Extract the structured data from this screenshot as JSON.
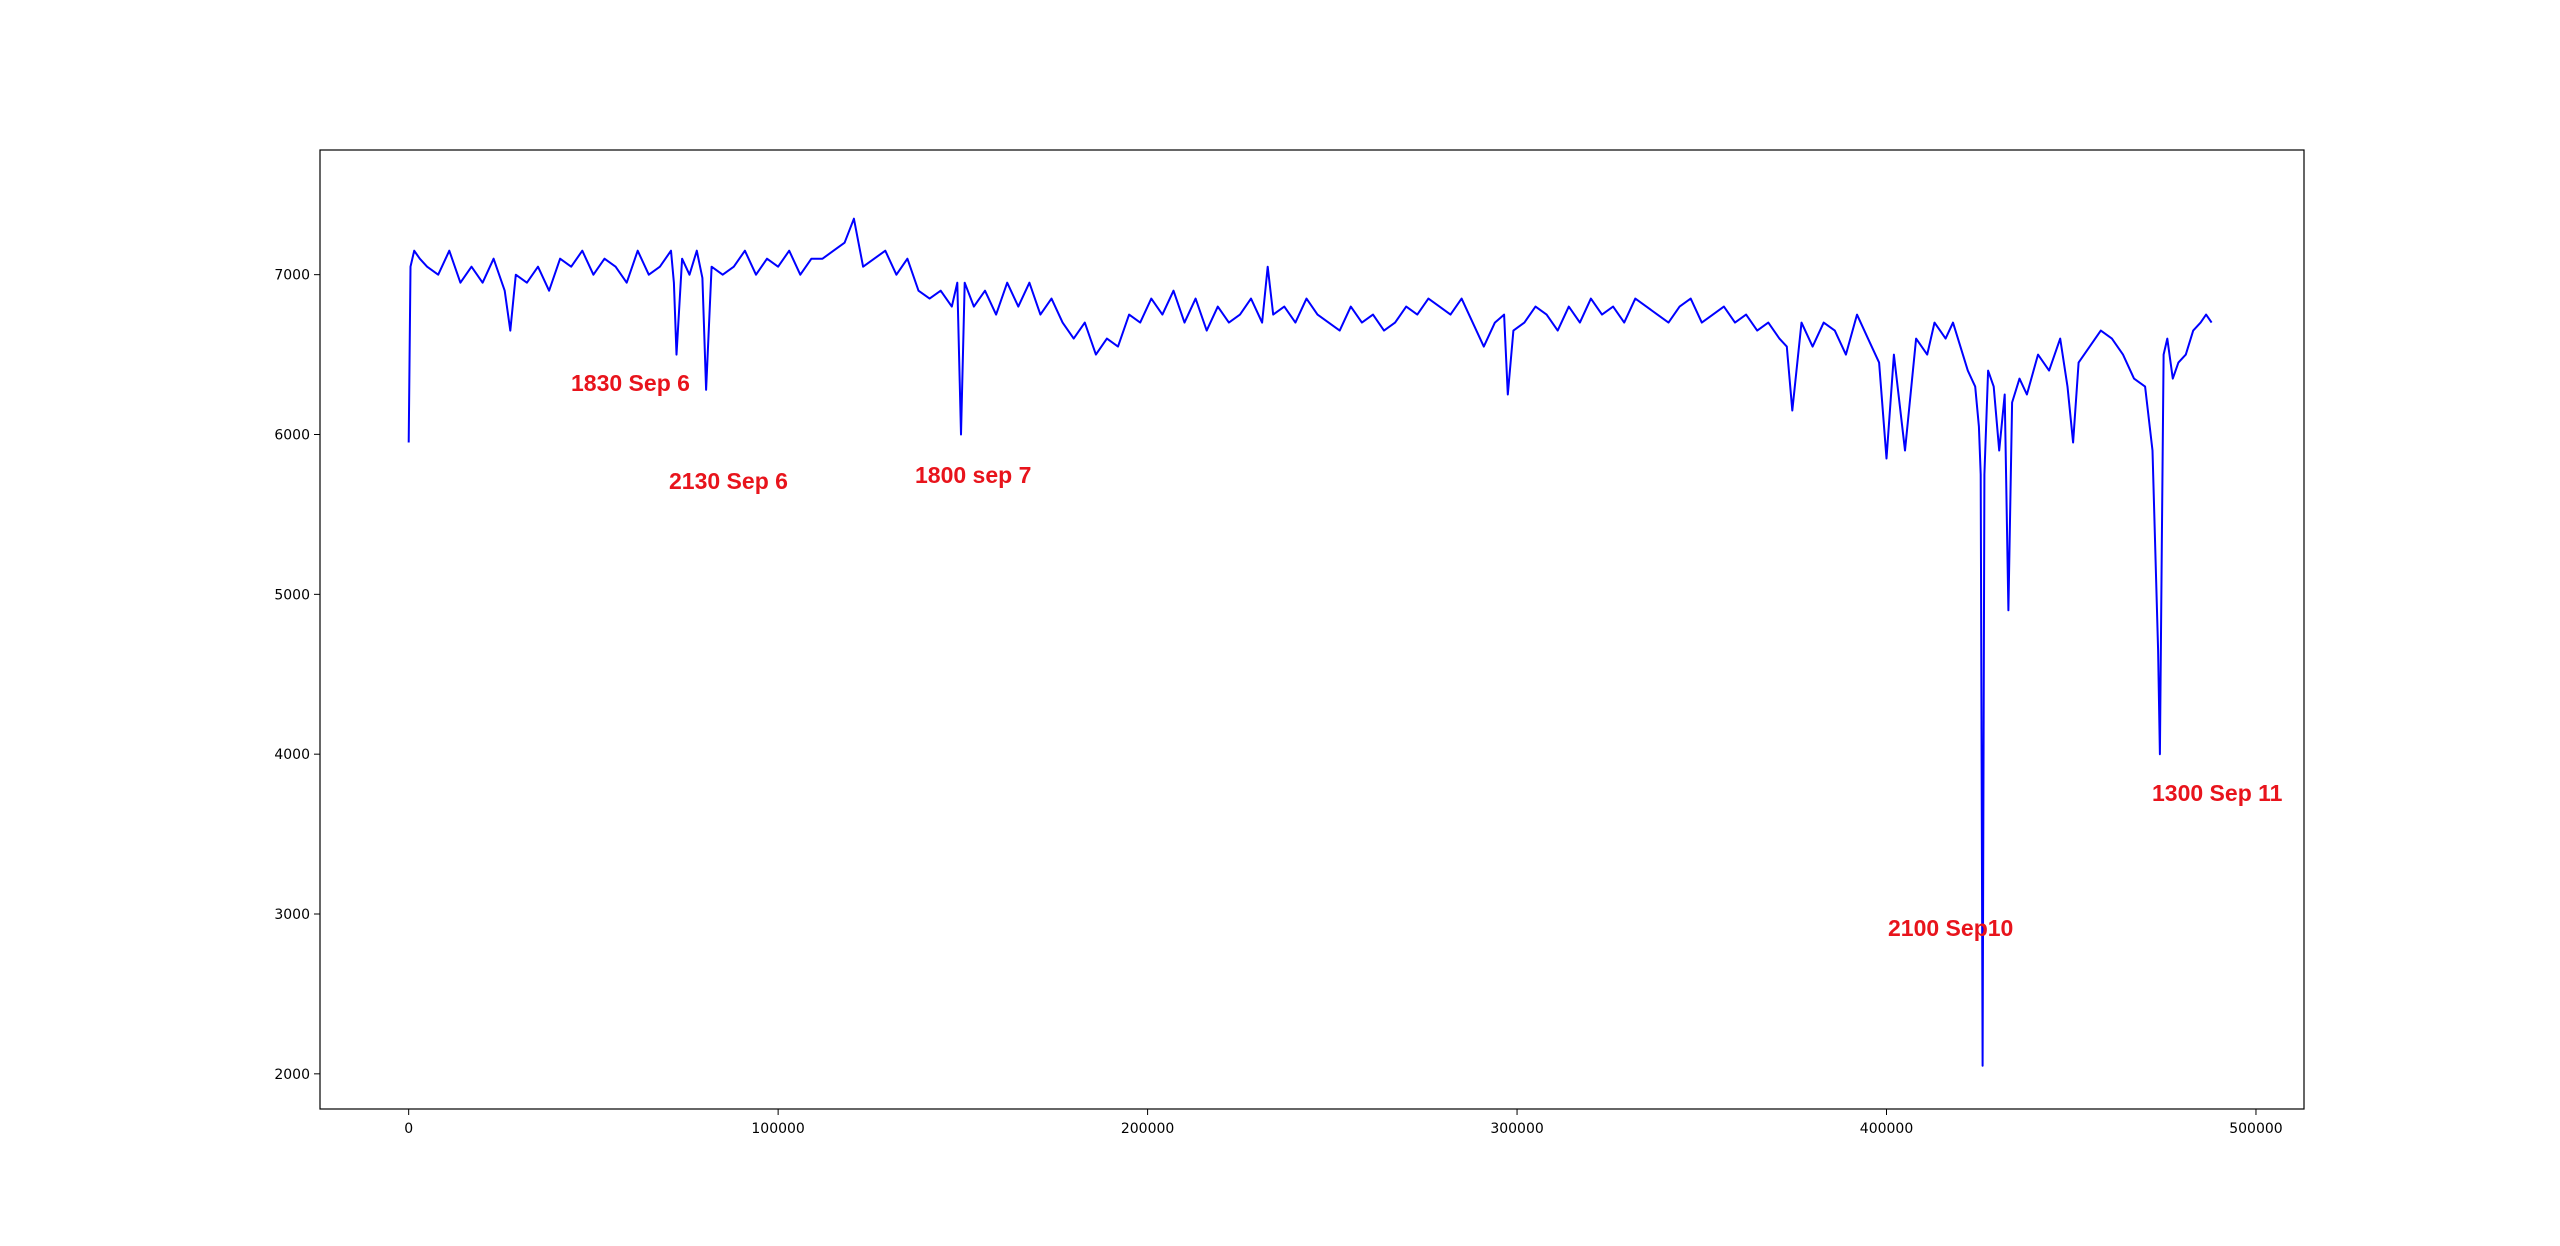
{
  "colors": {
    "line": "#0000ff",
    "annotation": "#e8141c",
    "axes": "#000000",
    "background": "#ffffff"
  },
  "chart_data": {
    "type": "line",
    "title": "",
    "xlabel": "",
    "ylabel": "",
    "grid": false,
    "xlim": [
      -24000,
      513000
    ],
    "ylim": [
      1780,
      7780
    ],
    "x_ticks": [
      0,
      100000,
      200000,
      300000,
      400000,
      500000
    ],
    "x_tick_labels": [
      "0",
      "100000",
      "200000",
      "300000",
      "400000",
      "500000"
    ],
    "y_ticks": [
      2000,
      3000,
      4000,
      5000,
      6000,
      7000
    ],
    "y_tick_labels": [
      "2000",
      "3000",
      "4000",
      "5000",
      "6000",
      "7000"
    ],
    "series": [
      {
        "color": "#0000ff",
        "x": [
          0,
          500,
          1500,
          3000,
          5000,
          8000,
          11000,
          14000,
          17000,
          20000,
          23000,
          26000,
          27500,
          29000,
          32000,
          35000,
          38000,
          41000,
          44000,
          47000,
          50000,
          53000,
          56000,
          59000,
          62000,
          65000,
          68000,
          71000,
          71800,
          72500,
          74000,
          76000,
          78000,
          79500,
          80500,
          82000,
          85000,
          88000,
          91000,
          94000,
          97000,
          100000,
          103000,
          106000,
          109000,
          112000,
          115000,
          118000,
          120500,
          123000,
          126000,
          129000,
          132000,
          135000,
          138000,
          141000,
          144000,
          147000,
          148500,
          149500,
          150500,
          153000,
          156000,
          159000,
          162000,
          165000,
          168000,
          171000,
          174000,
          177000,
          180000,
          183000,
          186000,
          189000,
          192000,
          195000,
          198000,
          201000,
          204000,
          207000,
          210000,
          213000,
          216000,
          219000,
          222000,
          225000,
          228000,
          231000,
          232500,
          234000,
          237000,
          240000,
          243000,
          246000,
          249000,
          252000,
          255000,
          258000,
          261000,
          264000,
          267000,
          270000,
          273000,
          276000,
          279000,
          282000,
          285000,
          288000,
          291000,
          294000,
          296500,
          297500,
          299000,
          302000,
          305000,
          308000,
          311000,
          314000,
          317000,
          320000,
          323000,
          326000,
          329000,
          332000,
          335000,
          338000,
          341000,
          344000,
          347000,
          350000,
          353000,
          356000,
          359000,
          362000,
          365000,
          368000,
          371000,
          373000,
          374500,
          377000,
          380000,
          383000,
          386000,
          389000,
          392000,
          395000,
          398000,
          400000,
          402000,
          405000,
          408000,
          411000,
          413000,
          414500,
          416000,
          418000,
          420000,
          422000,
          424000,
          425000,
          425500,
          426000,
          426500,
          427500,
          429000,
          430500,
          432000,
          433000,
          434000,
          436000,
          438000,
          441000,
          444000,
          447000,
          449000,
          450500,
          452000,
          455000,
          458000,
          461000,
          464000,
          467000,
          470000,
          472000,
          473500,
          474000,
          474500,
          475000,
          476000,
          477500,
          479000,
          481000,
          483000,
          485000,
          486500,
          488000
        ],
        "y": [
          5950,
          7050,
          7150,
          7100,
          7050,
          7000,
          7150,
          6950,
          7050,
          6950,
          7100,
          6900,
          6650,
          7000,
          6950,
          7050,
          6900,
          7100,
          7050,
          7150,
          7000,
          7100,
          7050,
          6950,
          7150,
          7000,
          7050,
          7150,
          6950,
          6500,
          7100,
          7000,
          7150,
          6980,
          6280,
          7050,
          7000,
          7050,
          7150,
          7000,
          7100,
          7050,
          7150,
          7000,
          7100,
          7100,
          7150,
          7200,
          7350,
          7050,
          7100,
          7150,
          7000,
          7100,
          6900,
          6850,
          6900,
          6800,
          6950,
          6000,
          6950,
          6800,
          6900,
          6750,
          6950,
          6800,
          6950,
          6750,
          6850,
          6700,
          6600,
          6700,
          6500,
          6600,
          6550,
          6750,
          6700,
          6850,
          6750,
          6900,
          6700,
          6850,
          6650,
          6800,
          6700,
          6750,
          6850,
          6700,
          7050,
          6750,
          6800,
          6700,
          6850,
          6750,
          6700,
          6650,
          6800,
          6700,
          6750,
          6650,
          6700,
          6800,
          6750,
          6850,
          6800,
          6750,
          6850,
          6700,
          6550,
          6700,
          6750,
          6250,
          6650,
          6700,
          6800,
          6750,
          6650,
          6800,
          6700,
          6850,
          6750,
          6800,
          6700,
          6850,
          6800,
          6750,
          6700,
          6800,
          6850,
          6700,
          6750,
          6800,
          6700,
          6750,
          6650,
          6700,
          6600,
          6550,
          6150,
          6700,
          6550,
          6700,
          6650,
          6500,
          6750,
          6600,
          6450,
          5850,
          6500,
          5900,
          6600,
          6500,
          6700,
          6650,
          6600,
          6700,
          6550,
          6400,
          6300,
          6050,
          5750,
          2050,
          5750,
          6400,
          6300,
          5900,
          6250,
          4900,
          6200,
          6350,
          6250,
          6500,
          6400,
          6600,
          6300,
          5950,
          6450,
          6550,
          6650,
          6600,
          6500,
          6350,
          6300,
          5900,
          4650,
          4000,
          5300,
          6500,
          6600,
          6350,
          6450,
          6500,
          6650,
          6700,
          6750,
          6700
        ]
      }
    ],
    "annotations": [
      {
        "text": "1830 Sep 6"
      },
      {
        "text": "2130 Sep 6"
      },
      {
        "text": "1800 sep 7"
      },
      {
        "text": "2100 Sep10"
      },
      {
        "text": "1300 Sep 11"
      }
    ]
  }
}
